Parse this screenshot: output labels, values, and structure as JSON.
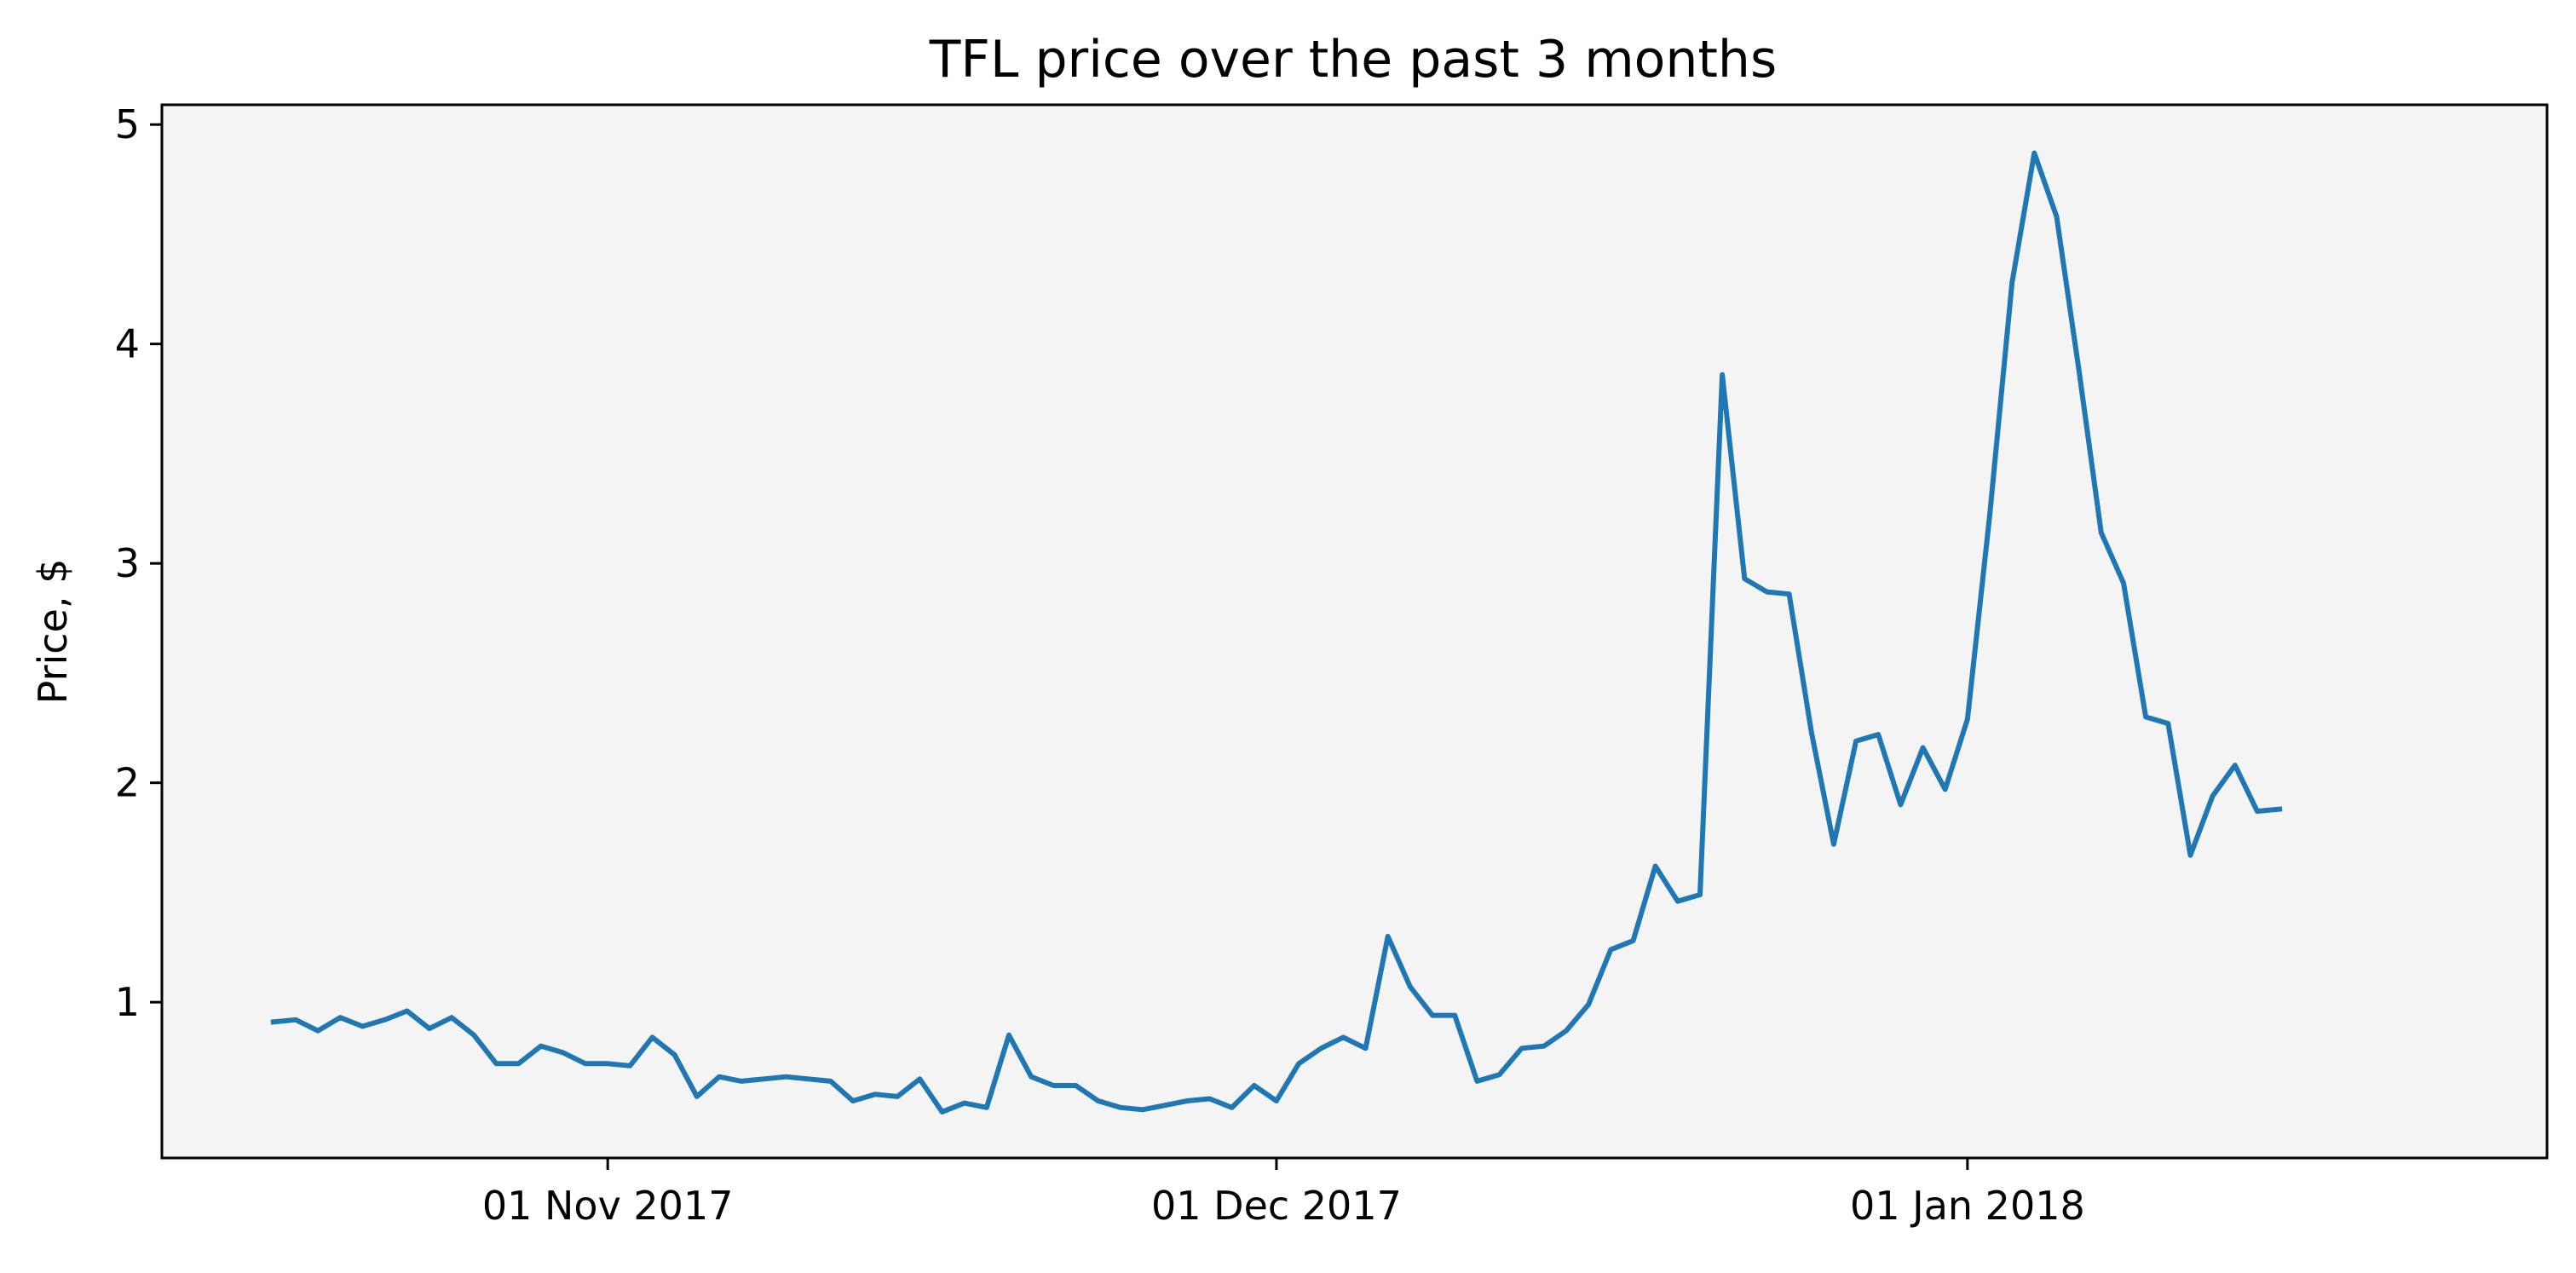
{
  "chart_data": {
    "type": "line",
    "title": "TFL price over the past 3 months",
    "xlabel": "",
    "ylabel": "Price, $",
    "x_start": "2017-10-17",
    "x_step_days": 1,
    "xlim": [
      "2017-10-12",
      "2018-01-27"
    ],
    "ylim": [
      0.29,
      5.09
    ],
    "y_ticks": [
      1,
      2,
      3,
      4,
      5
    ],
    "y_tick_labels": [
      "1",
      "2",
      "3",
      "4",
      "5"
    ],
    "x_ticks": [
      "2017-11-01",
      "2017-12-01",
      "2018-01-01"
    ],
    "x_tick_labels": [
      "01 Nov 2017",
      "01 Dec 2017",
      "01 Jan 2018"
    ],
    "grid": false,
    "legend": "none",
    "background_color": "#f4f4f4",
    "series": [
      {
        "color": "#1f77b4",
        "values": [
          0.91,
          0.92,
          0.87,
          0.93,
          0.89,
          0.92,
          0.96,
          0.88,
          0.93,
          0.85,
          0.72,
          0.72,
          0.8,
          0.77,
          0.72,
          0.72,
          0.71,
          0.84,
          0.76,
          0.57,
          0.66,
          0.64,
          0.65,
          0.66,
          0.65,
          0.64,
          0.55,
          0.58,
          0.57,
          0.65,
          0.5,
          0.54,
          0.52,
          0.85,
          0.66,
          0.62,
          0.62,
          0.55,
          0.52,
          0.51,
          0.53,
          0.55,
          0.56,
          0.52,
          0.62,
          0.55,
          0.72,
          0.79,
          0.84,
          0.79,
          1.3,
          1.07,
          0.94,
          0.94,
          0.64,
          0.67,
          0.79,
          0.8,
          0.87,
          0.99,
          1.24,
          1.28,
          1.62,
          1.46,
          1.49,
          3.86,
          2.93,
          2.87,
          2.86,
          2.23,
          1.72,
          2.19,
          2.22,
          1.9,
          2.16,
          1.97,
          2.29,
          3.22,
          4.28,
          4.87,
          4.58,
          3.88,
          3.14,
          2.91,
          2.3,
          2.27,
          1.67,
          1.94,
          2.08,
          1.87,
          1.88
        ]
      }
    ]
  }
}
